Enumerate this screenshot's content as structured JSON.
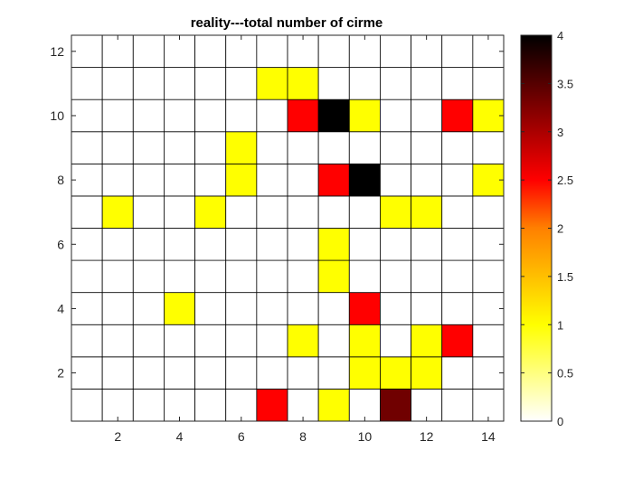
{
  "chart_data": {
    "type": "heatmap",
    "title": "reality---total number of cirme",
    "xlabel": "",
    "ylabel": "",
    "columns": [
      1,
      2,
      3,
      4,
      5,
      6,
      7,
      8,
      9,
      10,
      11,
      12,
      13,
      14
    ],
    "rows": [
      1,
      2,
      3,
      4,
      5,
      6,
      7,
      8,
      9,
      10,
      11,
      12
    ],
    "xlim": [
      0.5,
      14.5
    ],
    "ylim": [
      0.5,
      12.5
    ],
    "xticks": [
      2,
      4,
      6,
      8,
      10,
      12,
      14
    ],
    "yticks": [
      2,
      4,
      6,
      8,
      10,
      12
    ],
    "colormap": "hot (reversed)",
    "clim": [
      0,
      4
    ],
    "colorbar_ticks": [
      "0",
      "0.5",
      "1",
      "1.5",
      "2",
      "2.5",
      "3",
      "3.5",
      "4"
    ],
    "grid": true,
    "values": [
      [
        0,
        0,
        0,
        0,
        0,
        0,
        2,
        0,
        1,
        0,
        3,
        0,
        0,
        0
      ],
      [
        0,
        0,
        0,
        0,
        0,
        0,
        0,
        0,
        0,
        1,
        1,
        1,
        0,
        0
      ],
      [
        0,
        0,
        0,
        0,
        0,
        0,
        0,
        1,
        0,
        1,
        0,
        1,
        2,
        0
      ],
      [
        0,
        0,
        0,
        1,
        0,
        0,
        0,
        0,
        0,
        2,
        0,
        0,
        0,
        0
      ],
      [
        0,
        0,
        0,
        0,
        0,
        0,
        0,
        0,
        1,
        0,
        0,
        0,
        0,
        0
      ],
      [
        0,
        0,
        0,
        0,
        0,
        0,
        0,
        0,
        1,
        0,
        0,
        0,
        0,
        0
      ],
      [
        0,
        1,
        0,
        0,
        1,
        0,
        0,
        0,
        0,
        0,
        1,
        1,
        0,
        0
      ],
      [
        0,
        0,
        0,
        0,
        0,
        1,
        0,
        0,
        2,
        4,
        0,
        0,
        0,
        1
      ],
      [
        0,
        0,
        0,
        0,
        0,
        1,
        0,
        0,
        0,
        0,
        0,
        0,
        0,
        0
      ],
      [
        0,
        0,
        0,
        0,
        0,
        0,
        0,
        2,
        4,
        1,
        0,
        0,
        2,
        1
      ],
      [
        0,
        0,
        0,
        0,
        0,
        0,
        1,
        1,
        0,
        0,
        0,
        0,
        0,
        0
      ],
      [
        0,
        0,
        0,
        0,
        0,
        0,
        0,
        0,
        0,
        0,
        0,
        0,
        0,
        0
      ]
    ]
  }
}
